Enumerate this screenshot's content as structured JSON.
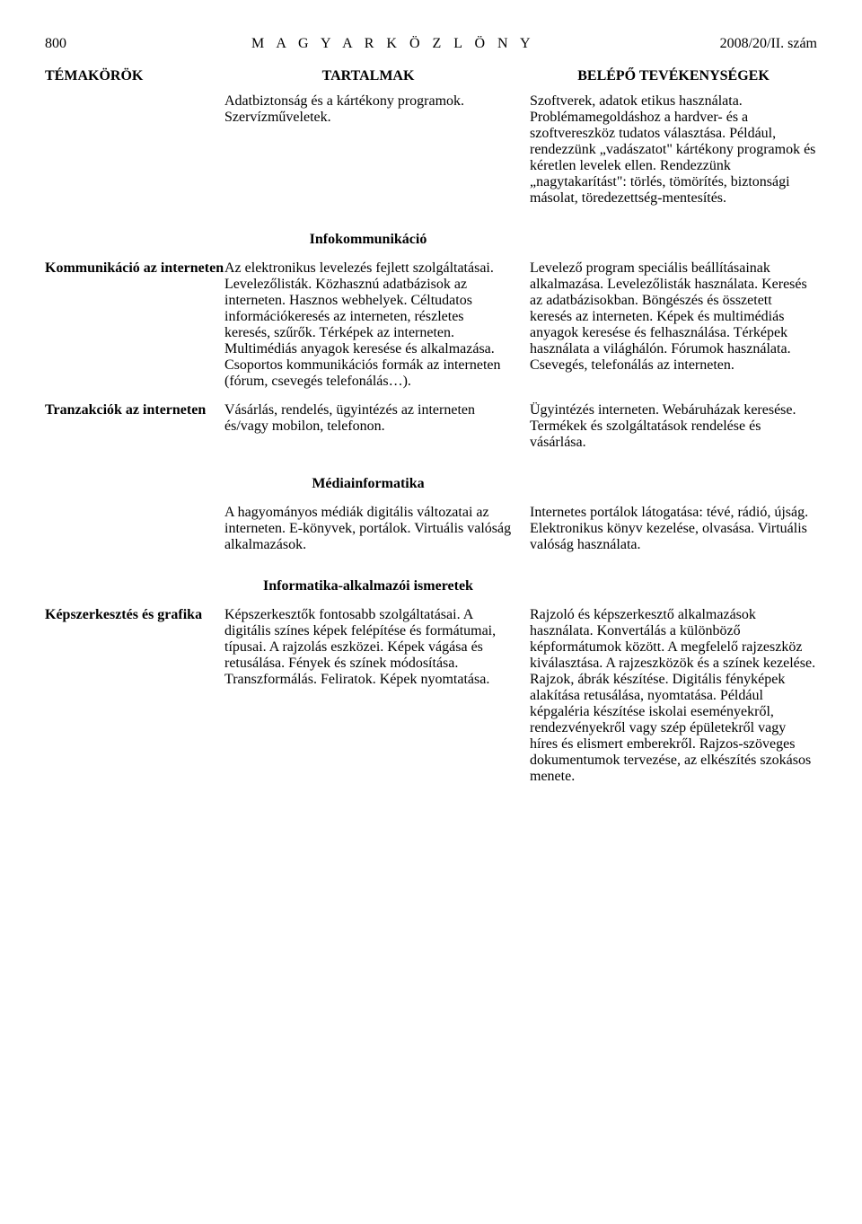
{
  "header": {
    "page_number": "800",
    "title": "M A G Y A R   K Ö Z L Ö N Y",
    "issue": "2008/20/II. szám"
  },
  "column_headers": {
    "c1": "TÉMAKÖRÖK",
    "c2": "TARTALMAK",
    "c3": "BELÉPŐ TEVÉKENYSÉGEK"
  },
  "rows": {
    "r1": {
      "topic": "",
      "content": "Adatbiztonság és a kártékony programok.\nSzervízműveletek.",
      "activity": "Szoftverek, adatok etikus használata. Problémamegoldáshoz a hardver- és a szoftvereszköz tudatos választása. Például, rendezzünk „vadászatot\" kártékony programok és kéretlen levelek ellen. Rendezzünk „nagytakarítást\": törlés, tömörítés, biztonsági másolat, töredezettség-mentesítés."
    },
    "r2": {
      "topic": "Kommunikáció az interneten",
      "content": "Az elektronikus levelezés fejlett szolgáltatásai. Levelezőlisták. Közhasznú adatbázisok az interneten. Hasznos webhelyek. Céltudatos információkeresés az interneten, részletes keresés, szűrők. Térképek az interneten. Multimédiás anyagok keresése és alkalmazása. Csoportos kommunikációs formák az interneten (fórum, csevegés telefonálás…).",
      "activity": "Levelező program speciális beállításainak alkalmazása. Levelezőlisták használata. Keresés az adatbázisokban. Böngészés és összetett keresés az interneten. Képek és multimédiás anyagok keresése és felhasználása. Térképek használata a világhálón. Fórumok használata. Csevegés, telefonálás az interneten."
    },
    "r3": {
      "topic": "Tranzakciók az interneten",
      "content": "Vásárlás, rendelés, ügyintézés az interneten és/vagy mobilon, telefonon.",
      "activity": "Ügyintézés interneten. Webáruházak keresése. Termékek és szolgáltatások rendelése és vásárlása."
    },
    "r4": {
      "topic": "",
      "content": "A hagyományos médiák digitális változatai az interneten. E-könyvek, portálok. Virtuális valóság alkalmazások.",
      "activity": "Internetes portálok látogatása: tévé, rádió, újság. Elektronikus könyv kezelése, olvasása. Virtuális valóság használata."
    },
    "r5": {
      "topic": "Képszerkesztés és grafika",
      "content": "Képszerkesztők fontosabb szolgáltatásai. A digitális színes képek felépítése és formátumai, típusai. A rajzolás eszközei. Képek vágása és retusálása. Fények és színek módosítása. Transzformálás. Feliratok. Képek nyomtatása.",
      "activity": "Rajzoló és képszerkesztő alkalmazások használata. Konvertálás a különböző képformátumok között. A megfelelő rajzeszköz kiválasztása. A rajzeszközök és a színek kezelése. Rajzok, ábrák készítése. Digitális fényképek alakítása retusálása, nyomtatása. Például képgaléria készítése iskolai eseményekről, rendezvényekről vagy szép épületekről vagy híres és elismert emberekről. Rajzos-szöveges dokumentumok tervezése, az elkészítés szokásos menete."
    }
  },
  "sections": {
    "s1": "Infokommunikáció",
    "s2": "Médiainformatika",
    "s3": "Informatika-alkalmazói ismeretek"
  }
}
